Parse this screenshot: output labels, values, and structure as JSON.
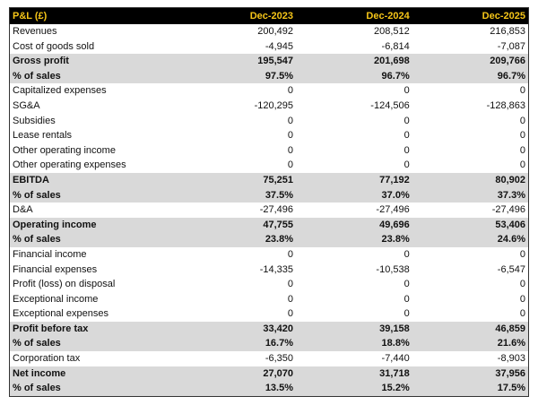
{
  "table": {
    "header": [
      "P&L (£)",
      "Dec-2023",
      "Dec-2024",
      "Dec-2025"
    ],
    "rows": [
      [
        "Revenues",
        "200,492",
        "208,512",
        "216,853"
      ],
      [
        "Cost of goods sold",
        "-4,945",
        "-6,814",
        "-7,087"
      ],
      [
        "Gross profit",
        "195,547",
        "201,698",
        "209,766"
      ],
      [
        "% of sales",
        "97.5%",
        "96.7%",
        "96.7%"
      ],
      [
        "Capitalized expenses",
        "0",
        "0",
        "0"
      ],
      [
        "SG&A",
        "-120,295",
        "-124,506",
        "-128,863"
      ],
      [
        "Subsidies",
        "0",
        "0",
        "0"
      ],
      [
        "Lease rentals",
        "0",
        "0",
        "0"
      ],
      [
        "Other operating income",
        "0",
        "0",
        "0"
      ],
      [
        "Other operating expenses",
        "0",
        "0",
        "0"
      ],
      [
        "EBITDA",
        "75,251",
        "77,192",
        "80,902"
      ],
      [
        "% of sales",
        "37.5%",
        "37.0%",
        "37.3%"
      ],
      [
        "D&A",
        "-27,496",
        "-27,496",
        "-27,496"
      ],
      [
        "Operating income",
        "47,755",
        "49,696",
        "53,406"
      ],
      [
        "% of sales",
        "23.8%",
        "23.8%",
        "24.6%"
      ],
      [
        "Financial income",
        "0",
        "0",
        "0"
      ],
      [
        "Financial expenses",
        "-14,335",
        "-10,538",
        "-6,547"
      ],
      [
        "Profit (loss) on disposal",
        "0",
        "0",
        "0"
      ],
      [
        "Exceptional income",
        "0",
        "0",
        "0"
      ],
      [
        "Exceptional expenses",
        "0",
        "0",
        "0"
      ],
      [
        "Profit before tax",
        "33,420",
        "39,158",
        "46,859"
      ],
      [
        "% of sales",
        "16.7%",
        "18.8%",
        "21.6%"
      ],
      [
        "Corporation tax",
        "-6,350",
        "-7,440",
        "-8,903"
      ],
      [
        "Net income",
        "27,070",
        "31,718",
        "37,956"
      ],
      [
        "% of sales",
        "13.5%",
        "15.2%",
        "17.5%"
      ]
    ]
  }
}
